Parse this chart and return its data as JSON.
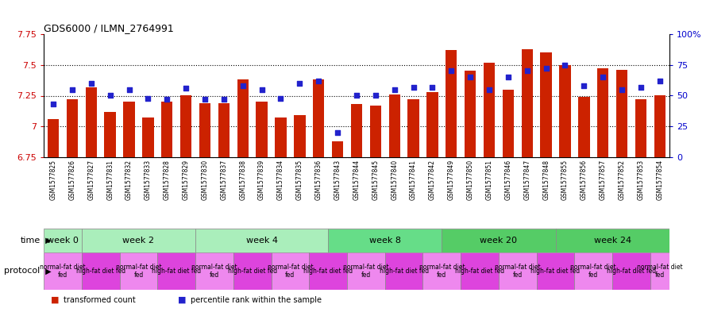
{
  "title": "GDS6000 / ILMN_2764991",
  "samples": [
    "GSM1577825",
    "GSM1577826",
    "GSM1577827",
    "GSM1577831",
    "GSM1577832",
    "GSM1577833",
    "GSM1577828",
    "GSM1577829",
    "GSM1577830",
    "GSM1577837",
    "GSM1577838",
    "GSM1577839",
    "GSM1577834",
    "GSM1577835",
    "GSM1577836",
    "GSM1577843",
    "GSM1577844",
    "GSM1577845",
    "GSM1577840",
    "GSM1577841",
    "GSM1577842",
    "GSM1577849",
    "GSM1577850",
    "GSM1577851",
    "GSM1577846",
    "GSM1577847",
    "GSM1577848",
    "GSM1577855",
    "GSM1577856",
    "GSM1577857",
    "GSM1577852",
    "GSM1577853",
    "GSM1577854"
  ],
  "red_values": [
    7.06,
    7.22,
    7.32,
    7.12,
    7.2,
    7.07,
    7.2,
    7.25,
    7.19,
    7.19,
    7.38,
    7.2,
    7.07,
    7.09,
    7.38,
    6.88,
    7.18,
    7.17,
    7.26,
    7.22,
    7.28,
    7.62,
    7.45,
    7.52,
    7.3,
    7.63,
    7.6,
    7.5,
    7.24,
    7.47,
    7.46,
    7.22,
    7.25
  ],
  "blue_values": [
    43,
    55,
    60,
    50,
    55,
    48,
    47,
    56,
    47,
    47,
    58,
    55,
    48,
    60,
    62,
    20,
    50,
    50,
    55,
    57,
    57,
    70,
    65,
    55,
    65,
    70,
    72,
    75,
    58,
    65,
    55,
    57,
    62
  ],
  "time_groups": [
    {
      "label": "week 0",
      "start": 0,
      "end": 2,
      "color": "#aaeebb"
    },
    {
      "label": "week 2",
      "start": 2,
      "end": 8,
      "color": "#aaeebb"
    },
    {
      "label": "week 4",
      "start": 8,
      "end": 15,
      "color": "#aaeebb"
    },
    {
      "label": "week 8",
      "start": 15,
      "end": 21,
      "color": "#66dd88"
    },
    {
      "label": "week 20",
      "start": 21,
      "end": 27,
      "color": "#55cc66"
    },
    {
      "label": "week 24",
      "start": 27,
      "end": 33,
      "color": "#55cc66"
    }
  ],
  "protocol_groups": [
    {
      "label": "normal-fat diet\nfed",
      "start": 0,
      "end": 2,
      "color": "#ee88ee"
    },
    {
      "label": "high-fat diet fed",
      "start": 2,
      "end": 4,
      "color": "#dd44dd"
    },
    {
      "label": "normal-fat diet\nfed",
      "start": 4,
      "end": 6,
      "color": "#ee88ee"
    },
    {
      "label": "high-fat diet fed",
      "start": 6,
      "end": 8,
      "color": "#dd44dd"
    },
    {
      "label": "normal-fat diet\nfed",
      "start": 8,
      "end": 10,
      "color": "#ee88ee"
    },
    {
      "label": "high-fat diet fed",
      "start": 10,
      "end": 12,
      "color": "#dd44dd"
    },
    {
      "label": "normal-fat diet\nfed",
      "start": 12,
      "end": 14,
      "color": "#ee88ee"
    },
    {
      "label": "high-fat diet fed",
      "start": 14,
      "end": 16,
      "color": "#dd44dd"
    },
    {
      "label": "normal-fat diet\nfed",
      "start": 16,
      "end": 18,
      "color": "#ee88ee"
    },
    {
      "label": "high-fat diet fed",
      "start": 18,
      "end": 20,
      "color": "#dd44dd"
    },
    {
      "label": "normal-fat diet\nfed",
      "start": 20,
      "end": 22,
      "color": "#ee88ee"
    },
    {
      "label": "high-fat diet fed",
      "start": 22,
      "end": 24,
      "color": "#dd44dd"
    },
    {
      "label": "normal-fat diet\nfed",
      "start": 24,
      "end": 26,
      "color": "#ee88ee"
    },
    {
      "label": "high-fat diet fed",
      "start": 26,
      "end": 28,
      "color": "#dd44dd"
    },
    {
      "label": "normal-fat diet\nfed",
      "start": 28,
      "end": 30,
      "color": "#ee88ee"
    },
    {
      "label": "high-fat diet fed",
      "start": 30,
      "end": 32,
      "color": "#dd44dd"
    },
    {
      "label": "normal-fat diet\nfed",
      "start": 32,
      "end": 33,
      "color": "#ee88ee"
    }
  ],
  "ylim_left": [
    6.75,
    7.75
  ],
  "ylim_right": [
    0,
    100
  ],
  "yticks_left": [
    6.75,
    7.0,
    7.25,
    7.5,
    7.75
  ],
  "yticks_right": [
    0,
    25,
    50,
    75,
    100
  ],
  "bar_color": "#cc2200",
  "dot_color": "#2222cc",
  "bar_bottom": 6.75,
  "label_color_left": "#cc0000",
  "label_color_right": "#0000cc"
}
